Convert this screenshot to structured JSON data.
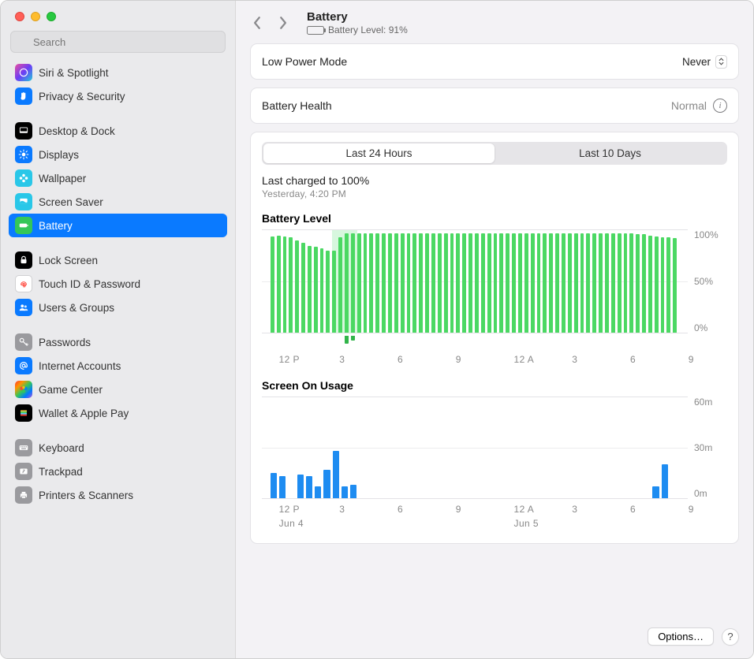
{
  "sidebar": {
    "search_placeholder": "Search",
    "groups": [
      [
        {
          "label": "Siri & Spotlight",
          "icon": "siri",
          "bg": "linear-gradient(135deg,#e94fa1,#6b3df5,#24c9db)"
        },
        {
          "label": "Privacy & Security",
          "icon": "hand",
          "bg": "#0a7aff"
        }
      ],
      [
        {
          "label": "Desktop & Dock",
          "icon": "dock",
          "bg": "#000000"
        },
        {
          "label": "Displays",
          "icon": "sun",
          "bg": "#0a7aff"
        },
        {
          "label": "Wallpaper",
          "icon": "flower",
          "bg": "#29c7e8"
        },
        {
          "label": "Screen Saver",
          "icon": "screensaver",
          "bg": "#29c7e8"
        },
        {
          "label": "Battery",
          "icon": "battery",
          "bg": "#34c759",
          "selected": true
        }
      ],
      [
        {
          "label": "Lock Screen",
          "icon": "lock",
          "bg": "#000000"
        },
        {
          "label": "Touch ID & Password",
          "icon": "fingerprint",
          "bg": "#ffffff",
          "border": true
        },
        {
          "label": "Users & Groups",
          "icon": "users",
          "bg": "#0a7aff"
        }
      ],
      [
        {
          "label": "Passwords",
          "icon": "key",
          "bg": "#9a9a9e"
        },
        {
          "label": "Internet Accounts",
          "icon": "at",
          "bg": "#0a7aff"
        },
        {
          "label": "Game Center",
          "icon": "gamecenter",
          "bg": "linear-gradient(135deg,#ff3b30,#ff9500,#34c759,#007aff,#af52de)"
        },
        {
          "label": "Wallet & Apple Pay",
          "icon": "wallet",
          "bg": "#000000"
        }
      ],
      [
        {
          "label": "Keyboard",
          "icon": "keyboard",
          "bg": "#9a9a9e"
        },
        {
          "label": "Trackpad",
          "icon": "trackpad",
          "bg": "#9a9a9e"
        },
        {
          "label": "Printers & Scanners",
          "icon": "printer",
          "bg": "#9a9a9e"
        }
      ]
    ]
  },
  "header": {
    "title": "Battery",
    "subtitle_prefix": "Battery Level:",
    "battery_pct": 91
  },
  "low_power": {
    "label": "Low Power Mode",
    "value": "Never"
  },
  "battery_health": {
    "label": "Battery Health",
    "value": "Normal"
  },
  "tabs": {
    "t24": "Last 24 Hours",
    "t10": "Last 10 Days",
    "active": "t24"
  },
  "last_charged": {
    "title": "Last charged to 100%",
    "sub": "Yesterday, 4:20 PM"
  },
  "battery_chart": {
    "title": "Battery Level",
    "type": "bar",
    "color": "#4bd863",
    "charging_color": "#b7f0c2",
    "below_color": "#32b44a",
    "y_labels": [
      "100%",
      "50%",
      "0%"
    ],
    "y_max": 100,
    "x_ticks": [
      {
        "label": "12 P",
        "pos": 0.04
      },
      {
        "label": "3",
        "pos": 0.17
      },
      {
        "label": "6",
        "pos": 0.295
      },
      {
        "label": "9",
        "pos": 0.42
      },
      {
        "label": "12 A",
        "pos": 0.545
      },
      {
        "label": "3",
        "pos": 0.67
      },
      {
        "label": "6",
        "pos": 0.795
      },
      {
        "label": "9",
        "pos": 0.92
      }
    ],
    "bars_count": 66,
    "charging_range": [
      10,
      13
    ],
    "below_bars": [
      {
        "i": 12,
        "v": 10
      },
      {
        "i": 13,
        "v": 6
      }
    ],
    "values": [
      94,
      95,
      94,
      93,
      90,
      88,
      85,
      84,
      82,
      80,
      80,
      93,
      97,
      97,
      97,
      97,
      97,
      97,
      97,
      97,
      97,
      97,
      97,
      97,
      97,
      97,
      97,
      97,
      97,
      97,
      97,
      97,
      97,
      97,
      97,
      97,
      97,
      97,
      97,
      97,
      97,
      97,
      97,
      97,
      97,
      97,
      97,
      97,
      97,
      97,
      97,
      97,
      97,
      97,
      97,
      97,
      97,
      97,
      97,
      96,
      96,
      95,
      94,
      93,
      93,
      92
    ]
  },
  "usage_chart": {
    "title": "Screen On Usage",
    "type": "bar",
    "color": "#1e8cf1",
    "y_labels": [
      "60m",
      "30m",
      "0m"
    ],
    "y_max": 60,
    "x_ticks": [
      {
        "label": "12 P",
        "pos": 0.04
      },
      {
        "label": "3",
        "pos": 0.17
      },
      {
        "label": "6",
        "pos": 0.295
      },
      {
        "label": "9",
        "pos": 0.42
      },
      {
        "label": "12 A",
        "pos": 0.545
      },
      {
        "label": "3",
        "pos": 0.67
      },
      {
        "label": "6",
        "pos": 0.795
      },
      {
        "label": "9",
        "pos": 0.92
      }
    ],
    "date_ticks": [
      {
        "label": "Jun 4",
        "pos": 0.04
      },
      {
        "label": "Jun 5",
        "pos": 0.545
      }
    ],
    "bars": [
      {
        "i": 0,
        "v": 15
      },
      {
        "i": 1,
        "v": 13
      },
      {
        "i": 3,
        "v": 14
      },
      {
        "i": 4,
        "v": 13
      },
      {
        "i": 5,
        "v": 7
      },
      {
        "i": 6,
        "v": 17
      },
      {
        "i": 7,
        "v": 28
      },
      {
        "i": 8,
        "v": 7
      },
      {
        "i": 9,
        "v": 8
      },
      {
        "i": 43,
        "v": 7
      },
      {
        "i": 44,
        "v": 20
      }
    ],
    "slots": 46
  },
  "footer": {
    "options": "Options…",
    "help": "?"
  },
  "colors": {
    "selection": "#0a7aff",
    "sidebar_bg": "#eaeaec",
    "main_bg": "#f3f2f5",
    "card_bg": "#ffffff",
    "grid": "#ececee"
  }
}
